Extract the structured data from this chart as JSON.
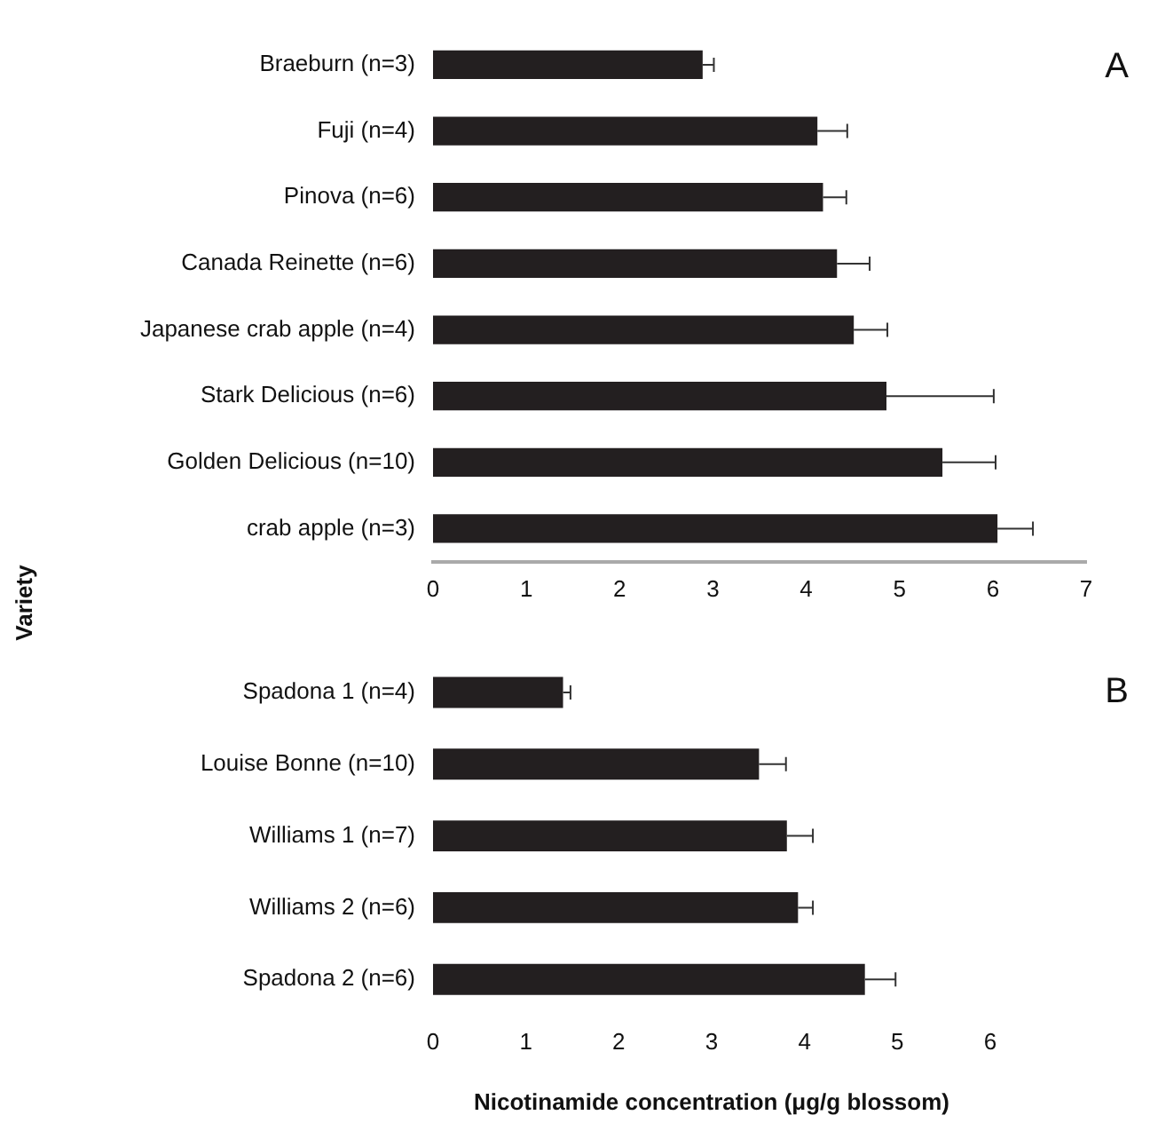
{
  "chart_data": [
    {
      "type": "bar",
      "orientation": "horizontal",
      "ylabel": "Variety",
      "annotations": [
        "A"
      ],
      "categories": [
        "Braeburn (n=3)",
        "Fuji (n=4)",
        "Pinova (n=6)",
        "Canada Reinette (n=6)",
        "Japanese crab apple (n=4)",
        "Stark Delicious (n=6)",
        "Golden Delicious (n=10)",
        "crab apple (n=3)"
      ],
      "values": [
        2.89,
        4.12,
        4.18,
        4.33,
        4.51,
        4.86,
        5.46,
        6.05
      ],
      "errors": [
        [
          2.89,
          3.01
        ],
        [
          4.12,
          4.44
        ],
        [
          4.18,
          4.43
        ],
        [
          4.33,
          4.68
        ],
        [
          4.51,
          4.87
        ],
        [
          4.86,
          6.01
        ],
        [
          5.46,
          6.03
        ],
        [
          6.05,
          6.43
        ]
      ],
      "color": "#231f20",
      "xlim": [
        0,
        7
      ],
      "xticks": [
        0,
        1,
        2,
        3,
        4,
        5,
        6,
        7
      ],
      "grid": false,
      "legend": false
    },
    {
      "type": "bar",
      "orientation": "horizontal",
      "xlabel": "Nicotinamide concentration (μg/g blossom)",
      "annotations": [
        "B"
      ],
      "categories": [
        "Spadona 1 (n=4)",
        "Louise Bonne (n=10)",
        "Williams 1 (n=7)",
        "Williams 2 (n=6)",
        "Spadona 2 (n=6)"
      ],
      "values": [
        1.4,
        3.51,
        3.81,
        3.93,
        4.65
      ],
      "errors": [
        [
          1.4,
          1.48
        ],
        [
          3.51,
          3.8
        ],
        [
          3.81,
          4.09
        ],
        [
          3.93,
          4.09
        ],
        [
          4.65,
          4.98
        ]
      ],
      "color": "#231f20",
      "xlim": [
        0,
        6
      ],
      "xticks": [
        0,
        1,
        2,
        3,
        4,
        5,
        6
      ],
      "grid": false,
      "legend": false
    }
  ]
}
